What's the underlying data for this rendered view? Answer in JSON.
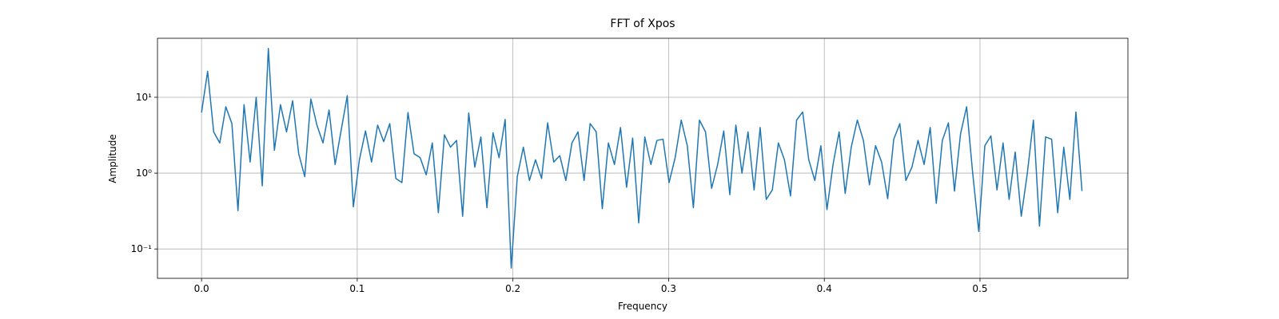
{
  "chart_data": {
    "type": "line",
    "title": "FFT of Xpos",
    "xlabel": "Frequency",
    "ylabel": "Amplitude",
    "color": "#1f77b4",
    "log_y": true,
    "grid": true,
    "xlim": [
      -0.0283,
      0.595
    ],
    "ylim": [
      0.041,
      60
    ],
    "xticks": [
      {
        "value": 0,
        "label": "0.0"
      },
      0.1,
      0.2,
      0.3,
      0.4,
      0.5
    ],
    "yticks": [
      {
        "value": 0.1,
        "label": "10⁻¹"
      },
      {
        "value": 1,
        "label": "10⁰"
      },
      {
        "value": 10,
        "label": "10¹"
      }
    ],
    "x": [
      0,
      0.0039,
      0.0078,
      0.0117,
      0.0156,
      0.0195,
      0.0234,
      0.0273,
      0.0312,
      0.0351,
      0.039,
      0.0429,
      0.0468,
      0.0507,
      0.0546,
      0.0585,
      0.0624,
      0.0663,
      0.0702,
      0.0741,
      0.078,
      0.0819,
      0.0858,
      0.0897,
      0.0936,
      0.0975,
      0.1014,
      0.1053,
      0.1092,
      0.1131,
      0.117,
      0.1209,
      0.1248,
      0.1287,
      0.1326,
      0.1365,
      0.1404,
      0.1443,
      0.1482,
      0.1521,
      0.156,
      0.1599,
      0.1638,
      0.1677,
      0.1716,
      0.1755,
      0.1794,
      0.1833,
      0.1872,
      0.1911,
      0.195,
      0.1989,
      0.2028,
      0.2067,
      0.2106,
      0.2145,
      0.2184,
      0.2223,
      0.2262,
      0.2301,
      0.234,
      0.2379,
      0.2418,
      0.2457,
      0.2496,
      0.2535,
      0.2574,
      0.2613,
      0.2652,
      0.2691,
      0.273,
      0.2769,
      0.2808,
      0.2847,
      0.2886,
      0.2925,
      0.2964,
      0.3003,
      0.3042,
      0.3081,
      0.312,
      0.3159,
      0.3198,
      0.3237,
      0.3276,
      0.3315,
      0.3354,
      0.3393,
      0.3432,
      0.3471,
      0.351,
      0.3549,
      0.3588,
      0.3627,
      0.3666,
      0.3705,
      0.3744,
      0.3783,
      0.3822,
      0.3861,
      0.39,
      0.3939,
      0.3978,
      0.4017,
      0.4056,
      0.4095,
      0.4134,
      0.4173,
      0.4212,
      0.4251,
      0.429,
      0.4329,
      0.4368,
      0.4407,
      0.4446,
      0.4485,
      0.4524,
      0.4563,
      0.4602,
      0.4641,
      0.468,
      0.4719,
      0.4758,
      0.4797,
      0.4836,
      0.4875,
      0.4914,
      0.4953,
      0.4992,
      0.5031,
      0.507,
      0.5109,
      0.5148,
      0.5187,
      0.5226,
      0.5265,
      0.5304,
      0.5343,
      0.5382,
      0.5421,
      0.546,
      0.5499,
      0.5538,
      0.5577,
      0.5616,
      0.5655
    ],
    "values": [
      6.3,
      22,
      3.5,
      2.5,
      7.5,
      4.5,
      0.32,
      8,
      1.4,
      10,
      0.68,
      44,
      2,
      8,
      3.5,
      9,
      1.8,
      0.9,
      9.5,
      4.3,
      2.5,
      6.8,
      1.3,
      3.7,
      10.5,
      0.36,
      1.5,
      3.6,
      1.4,
      4.3,
      2.6,
      4.5,
      0.85,
      0.75,
      6.3,
      1.8,
      1.6,
      0.95,
      2.5,
      0.3,
      3.2,
      2.2,
      2.7,
      0.27,
      6.2,
      1.2,
      3,
      0.35,
      3.4,
      1.6,
      5.1,
      0.056,
      0.9,
      2.2,
      0.8,
      1.5,
      0.85,
      4.6,
      1.4,
      1.7,
      0.8,
      2.5,
      3.5,
      0.8,
      4.5,
      3.5,
      0.34,
      2.5,
      1.3,
      4,
      0.65,
      2.9,
      0.22,
      3,
      1.3,
      2.7,
      2.8,
      0.75,
      1.6,
      5,
      2.3,
      0.35,
      5,
      3.5,
      0.63,
      1.3,
      3.6,
      0.52,
      4.3,
      1,
      3.5,
      0.6,
      4,
      0.45,
      0.6,
      2.5,
      1.5,
      0.5,
      5,
      6.4,
      1.5,
      0.8,
      2.3,
      0.33,
      1.3,
      3.5,
      0.54,
      2.2,
      5,
      2.7,
      0.7,
      2.3,
      1.4,
      0.46,
      2.8,
      4.5,
      0.8,
      1.2,
      2.7,
      1.3,
      4,
      0.4,
      2.7,
      4.6,
      0.58,
      3.3,
      7.5,
      1,
      0.17,
      2.3,
      3.1,
      0.6,
      2.5,
      0.45,
      1.9,
      0.27,
      1,
      5,
      0.2,
      3,
      2.8,
      0.3,
      2.2,
      0.45,
      6.4,
      0.58
    ]
  }
}
